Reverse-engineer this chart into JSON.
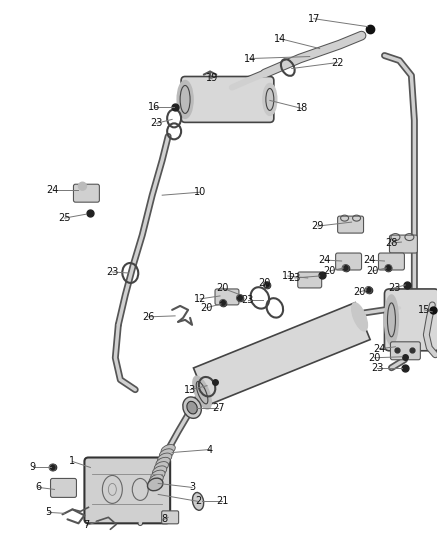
{
  "bg_color": "#ffffff",
  "line_color": "#333333",
  "label_color": "#111111",
  "figsize": [
    4.38,
    5.33
  ],
  "dpi": 100,
  "pipe_lw": 1.0,
  "pipe_color": "#444444",
  "pipe_inner": "#e8e8e8",
  "part_color": "#666666",
  "part_face": "#dddddd",
  "callout_fs": 7.0
}
